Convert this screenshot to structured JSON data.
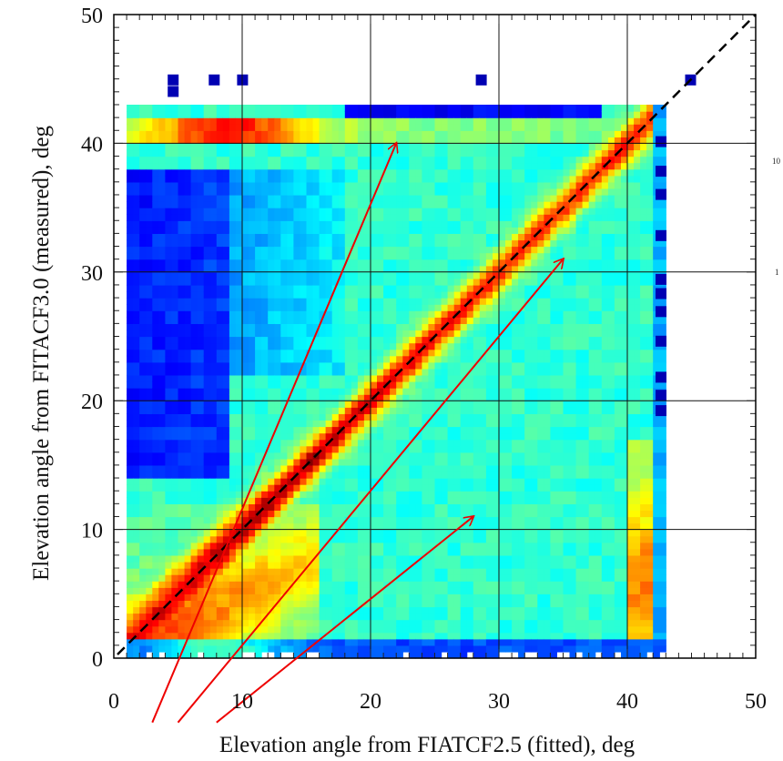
{
  "chart_data": {
    "type": "heatmap",
    "title": "",
    "xlabel": "Elevation angle from FIATCF2.5 (fitted), deg",
    "ylabel": "Elevation angle from FITACF3.0 (measured), deg",
    "xlim": [
      0,
      50
    ],
    "ylim": [
      0,
      50
    ],
    "x_ticks": [
      0,
      10,
      20,
      30,
      40,
      50
    ],
    "y_ticks": [
      0,
      10,
      20,
      30,
      40,
      50
    ],
    "grid": true,
    "bin_size_deg": 1,
    "data_extent_x": [
      1,
      43
    ],
    "data_extent_y": [
      1,
      43
    ],
    "colormap": [
      "#00008f",
      "#0000ff",
      "#0080ff",
      "#00ffff",
      "#80ff80",
      "#ffff00",
      "#ff8000",
      "#ff0000",
      "#800000"
    ],
    "diagonal_ridge": {
      "from": [
        6,
        6
      ],
      "to": [
        42,
        42
      ],
      "peak_near": 13
    },
    "features": [
      {
        "name": "upper band",
        "y_range": [
          40,
          42
        ],
        "peak_x": 9
      },
      {
        "name": "right edge band",
        "x_range": [
          40,
          42
        ],
        "y_range": [
          2,
          16
        ]
      },
      {
        "name": "low-elevation fan",
        "x_range": [
          2,
          14
        ],
        "y_range": [
          1,
          12
        ]
      }
    ],
    "reference_line": {
      "style": "dashed",
      "color": "#000000",
      "from": [
        0,
        0
      ],
      "to": [
        50,
        50
      ]
    },
    "annotation_arrows": [
      {
        "color": "#ee0000",
        "from": [
          3,
          -5
        ],
        "to": [
          22,
          40
        ]
      },
      {
        "color": "#ee0000",
        "from": [
          5,
          -5
        ],
        "to": [
          35,
          31
        ]
      },
      {
        "color": "#ee0000",
        "from": [
          8,
          -5
        ],
        "to": [
          28,
          11
        ]
      }
    ],
    "edge_labels": [
      "10",
      "1"
    ]
  }
}
